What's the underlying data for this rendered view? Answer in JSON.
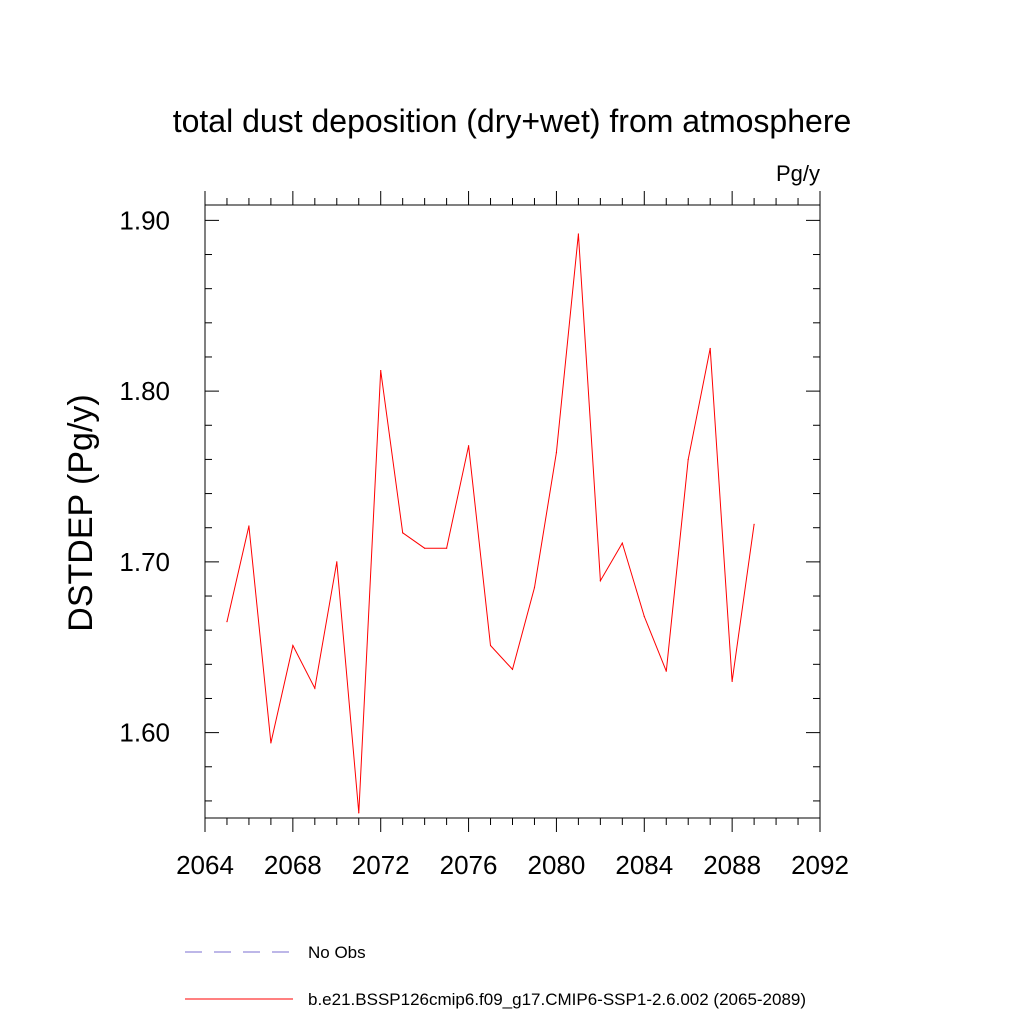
{
  "chart_data": {
    "type": "line",
    "title": "total dust deposition (dry+wet) from atmosphere",
    "units_label": "Pg/y",
    "ylabel": "DSTDEP  (Pg/y)",
    "xlabel": "",
    "xlim": [
      2064,
      2092
    ],
    "ylim": [
      1.55,
      1.909
    ],
    "x_ticks": [
      2064,
      2068,
      2072,
      2076,
      2080,
      2084,
      2088,
      2092
    ],
    "y_ticks": [
      1.6,
      1.7,
      1.8,
      1.9
    ],
    "x_tick_labels": [
      "2064",
      "2068",
      "2072",
      "2076",
      "2080",
      "2084",
      "2088",
      "2092"
    ],
    "y_tick_labels": [
      "1.60",
      "1.70",
      "1.80",
      "1.90"
    ],
    "grid": false,
    "legend_position": "bottom",
    "series": [
      {
        "name": "b.e21.BSSP126cmip6.f09_g17.CMIP6-SSP1-2.6.002 (2065-2089)",
        "color": "#ff0000",
        "dash": "solid",
        "x": [
          2065,
          2066,
          2067,
          2068,
          2069,
          2070,
          2071,
          2072,
          2073,
          2074,
          2075,
          2076,
          2077,
          2078,
          2079,
          2080,
          2081,
          2082,
          2083,
          2084,
          2085,
          2086,
          2087,
          2088,
          2089
        ],
        "values": [
          1.665,
          1.721,
          1.594,
          1.651,
          1.626,
          1.7,
          1.553,
          1.812,
          1.717,
          1.708,
          1.708,
          1.768,
          1.651,
          1.637,
          1.685,
          1.764,
          1.892,
          1.689,
          1.711,
          1.668,
          1.636,
          1.76,
          1.825,
          1.63,
          1.722
        ]
      }
    ],
    "legend": [
      {
        "label": "No Obs",
        "color": "#7b6fd0",
        "dash": "dashed"
      },
      {
        "label": "b.e21.BSSP126cmip6.f09_g17.CMIP6-SSP1-2.6.002 (2065-2089)",
        "color": "#ff0000",
        "dash": "solid"
      }
    ]
  }
}
